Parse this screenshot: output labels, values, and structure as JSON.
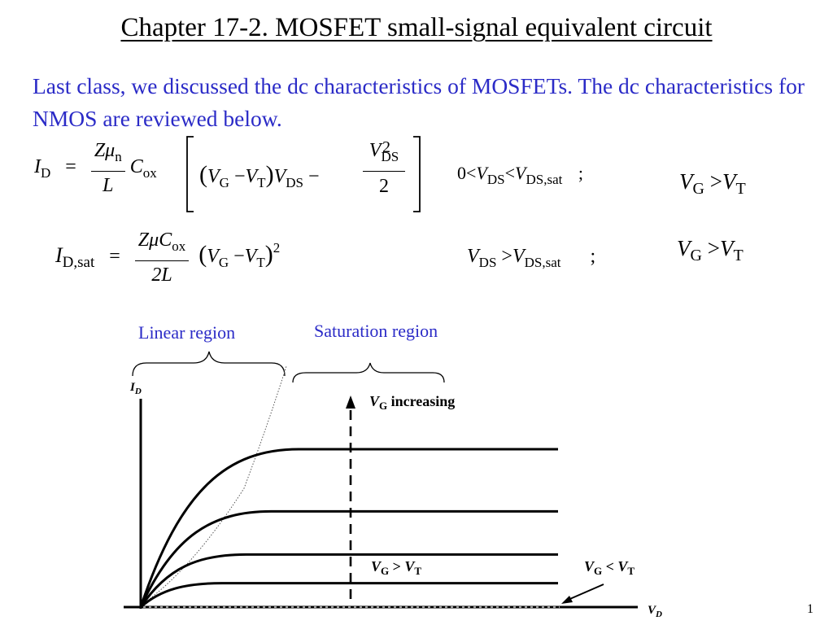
{
  "slide": {
    "title": "Chapter 17-2. MOSFET small-signal equivalent circuit",
    "intro": "Last class, we discussed the dc characteristics of MOSFETs. The dc characteristics for NMOS are reviewed below.",
    "page_number": "1"
  },
  "equations": {
    "eq1": {
      "lhs": "I",
      "lhs_sub": "D",
      "equals": "=",
      "coef_num": "Zμ",
      "coef_num_sub": "n",
      "coef_den": "L",
      "cox": "C",
      "cox_sub": "ox",
      "paren_open": "(",
      "vg": "V",
      "vg_sub": "G",
      "minus": "−",
      "vt": "V",
      "vt_sub": "T",
      "paren_close": ")",
      "vds": "V",
      "vds_sub": "DS",
      "frac_num": "V",
      "frac_num_sub": "DS",
      "frac_num_sup": "2",
      "frac_den": "2",
      "cond_zero": "0",
      "cond_lt1": "<",
      "cond_v1": "V",
      "cond_v1_sub": "DS",
      "cond_lt2": "<",
      "cond_v2": "V",
      "cond_v2_sub": "DS,sat",
      "semicolon": ";",
      "gate_v1": "V",
      "gate_v1_sub": "G",
      "gate_gt": ">",
      "gate_v2": "V",
      "gate_v2_sub": "T"
    },
    "eq2": {
      "lhs": "I",
      "lhs_sub": "D,sat",
      "equals": "=",
      "coef_num": "ZμC",
      "coef_num_sub": "ox",
      "coef_den": "2L",
      "paren_open": "(",
      "vg": "V",
      "vg_sub": "G",
      "minus": "−",
      "vt": "V",
      "vt_sub": "T",
      "paren_close": ")",
      "power": "2",
      "cond_v1": "V",
      "cond_v1_sub": "DS",
      "cond_gt": ">",
      "cond_v2": "V",
      "cond_v2_sub": "DS,sat",
      "semicolon": ";",
      "gate_v1": "V",
      "gate_v1_sub": "G",
      "gate_gt": ">",
      "gate_v2": "V",
      "gate_v2_sub": "T"
    }
  },
  "graph": {
    "linear_label": "Linear region",
    "saturation_label": "Saturation region",
    "y_axis": {
      "v": "I",
      "sub": "D"
    },
    "x_axis": {
      "v": "V",
      "sub": "D"
    },
    "vg_increasing": {
      "v": "V",
      "sub": "G",
      "text": " increasing"
    },
    "vg_gt_vt": {
      "v1": "V",
      "s1": "G",
      "op": " > ",
      "v2": "V",
      "s2": "T"
    },
    "vg_lt_vt": {
      "v1": "V",
      "s1": "G",
      "op": " < ",
      "v2": "V",
      "s2": "T"
    },
    "curve_saturation_levels": [
      0.1,
      0.22,
      0.4,
      0.66
    ],
    "colors": {
      "text_blue": "#2b2bc7",
      "ink": "#000000"
    }
  }
}
